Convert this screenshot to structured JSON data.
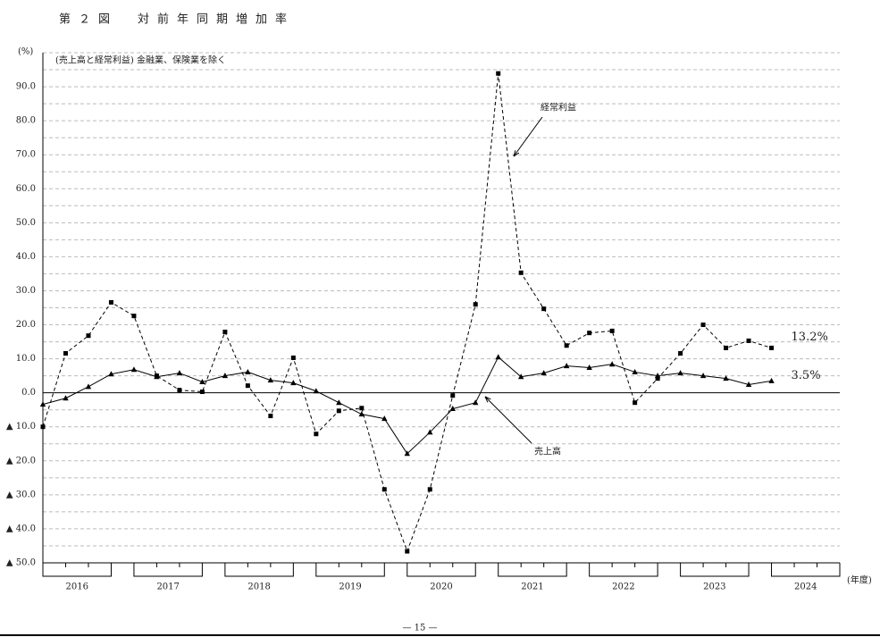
{
  "chart_data": {
    "type": "line",
    "title": "第２図　対前年同期増加率",
    "subtitle": "(売上高と経常利益) 金融業、保険業を除く",
    "y_label": "(%)",
    "x_label": "(年度)",
    "years": [
      "2016",
      "2017",
      "2018",
      "2019",
      "2020",
      "2021",
      "2022",
      "2023",
      "2024"
    ],
    "categories": [
      null,
      null,
      null,
      null,
      null,
      null,
      null,
      null,
      null,
      null,
      null,
      null,
      null,
      null,
      null,
      null,
      null,
      null,
      null,
      null,
      null,
      null,
      null,
      null,
      null,
      null,
      null,
      null,
      null,
      null,
      null,
      null,
      null,
      null,
      null,
      null
    ],
    "series": [
      {
        "name": "経常利益",
        "color": "#000000",
        "dash": true,
        "marker": "square",
        "values": [
          -10.0,
          11.6,
          16.8,
          26.6,
          22.6,
          5.0,
          0.8,
          0.3,
          17.9,
          2.1,
          -6.8,
          10.3,
          -12.1,
          -5.3,
          -4.5,
          -28.4,
          -46.6,
          -28.4,
          -0.8,
          26.0,
          93.9,
          35.3,
          24.7,
          13.9,
          17.6,
          18.2,
          -2.9,
          4.2,
          11.6,
          20.0,
          13.2,
          15.3,
          13.2,
          null,
          null,
          null
        ],
        "value_labels": [
          null,
          null,
          null,
          null,
          null,
          null,
          null,
          null,
          null,
          null,
          null,
          null,
          null,
          null,
          null,
          null,
          null,
          null,
          null,
          null,
          null,
          null,
          null,
          null,
          null,
          null,
          null,
          null,
          null,
          null,
          null,
          null,
          "13.2%",
          null,
          null,
          null
        ]
      },
      {
        "name": "売上高",
        "color": "#000000",
        "dash": false,
        "marker": "triangle",
        "values": [
          -3.4,
          -1.6,
          1.8,
          5.5,
          6.8,
          4.7,
          5.8,
          3.2,
          5.0,
          6.1,
          3.7,
          2.9,
          0.5,
          -2.9,
          -6.3,
          -7.6,
          -17.9,
          -11.6,
          -4.7,
          -2.9,
          10.5,
          4.7,
          5.8,
          7.9,
          7.4,
          8.4,
          6.1,
          5.0,
          5.8,
          5.0,
          4.2,
          2.4,
          3.5,
          null,
          null,
          null
        ],
        "value_labels": [
          null,
          null,
          null,
          null,
          null,
          null,
          null,
          null,
          null,
          null,
          null,
          null,
          null,
          null,
          null,
          null,
          null,
          null,
          null,
          null,
          null,
          null,
          null,
          null,
          null,
          null,
          null,
          null,
          null,
          null,
          null,
          null,
          "3.5%",
          null,
          null,
          null
        ]
      }
    ],
    "ylim": [
      -50,
      100
    ],
    "yticks": [
      {
        "value": -50,
        "label": "▲ 50.0"
      },
      {
        "value": -40,
        "label": "▲ 40.0"
      },
      {
        "value": -30,
        "label": "▲ 30.0"
      },
      {
        "value": -20,
        "label": "▲ 20.0"
      },
      {
        "value": -10,
        "label": "▲ 10.0"
      },
      {
        "value": 0,
        "label": "0.0"
      },
      {
        "value": 10,
        "label": "10.0"
      },
      {
        "value": 20,
        "label": "20.0"
      },
      {
        "value": 30,
        "label": "30.0"
      },
      {
        "value": 40,
        "label": "40.0"
      },
      {
        "value": 50,
        "label": "50.0"
      },
      {
        "value": 60,
        "label": "60.0"
      },
      {
        "value": 70,
        "label": "70.0"
      },
      {
        "value": 80,
        "label": "80.0"
      },
      {
        "value": 90,
        "label": "90.0"
      }
    ],
    "grid": true,
    "page_number": "— 15 —"
  }
}
